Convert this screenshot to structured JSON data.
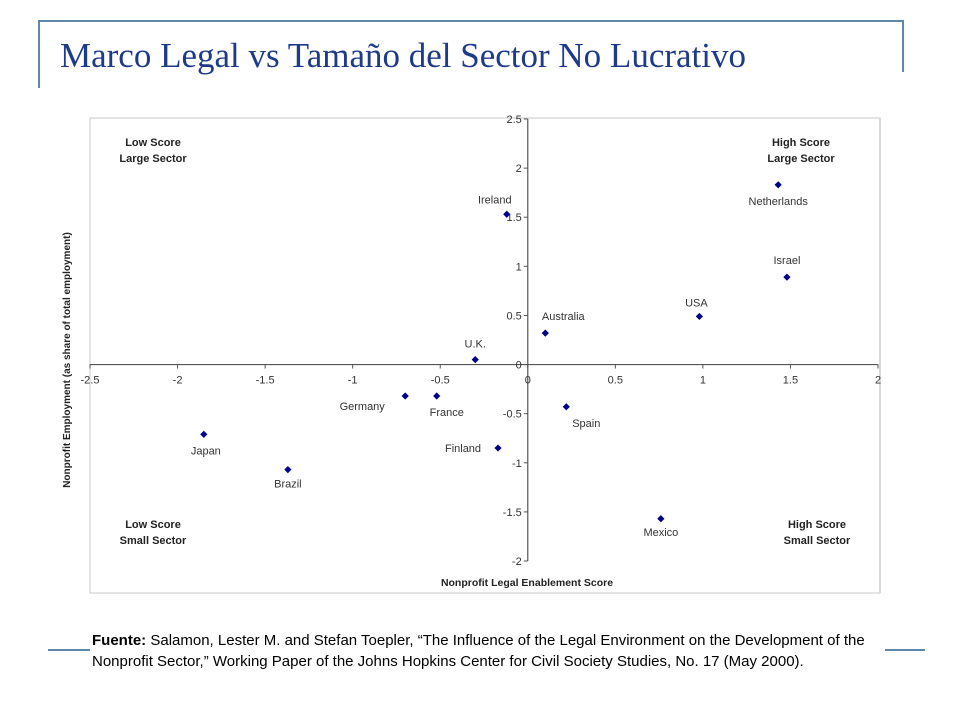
{
  "slide": {
    "title": "Marco Legal vs Tamaño del Sector No Lucrativo",
    "source_label": "Fuente:",
    "source_text": "Salamon, Lester M. and Stefan Toepler, “The Influence of the Legal Environment on the Development of the Nonprofit Sector,” Working Paper of the Johns Hopkins Center for Civil Society Studies, No. 17 (May 2000)."
  },
  "chart_data": {
    "type": "scatter",
    "xlabel": "Nonprofit Legal Enablement Score",
    "ylabel": "Nonprofit Employment (as share of total employment)",
    "xlim": [
      -2.5,
      2
    ],
    "ylim": [
      -2,
      2.5
    ],
    "x_ticks": [
      "-2.5",
      "-2",
      "-1.5",
      "-1",
      "-0.5",
      "0",
      "0.5",
      "1",
      "1.5",
      "2"
    ],
    "y_ticks": [
      "2.5",
      "2",
      "1.5",
      "1",
      "0.5",
      "0",
      "-0.5",
      "-1",
      "-1.5",
      "-2"
    ],
    "grid": false,
    "marker_color": "#00008b",
    "points": [
      {
        "label": "Ireland",
        "x": -0.12,
        "y": 1.53
      },
      {
        "label": "Netherlands",
        "x": 1.43,
        "y": 1.83
      },
      {
        "label": "Israel",
        "x": 1.48,
        "y": 0.89
      },
      {
        "label": "USA",
        "x": 0.98,
        "y": 0.49
      },
      {
        "label": "Australia",
        "x": 0.1,
        "y": 0.32
      },
      {
        "label": "U.K.",
        "x": -0.3,
        "y": 0.05
      },
      {
        "label": "Germany",
        "x": -0.7,
        "y": -0.32
      },
      {
        "label": "France",
        "x": -0.52,
        "y": -0.32
      },
      {
        "label": "Spain",
        "x": 0.22,
        "y": -0.43
      },
      {
        "label": "Japan",
        "x": -1.85,
        "y": -0.71
      },
      {
        "label": "Finland",
        "x": -0.17,
        "y": -0.85
      },
      {
        "label": "Brazil",
        "x": -1.37,
        "y": -1.07
      },
      {
        "label": "Mexico",
        "x": 0.76,
        "y": -1.57
      }
    ],
    "quadrant_labels": [
      {
        "line1": "Low Score",
        "line2": "Large Sector",
        "position": "top-left"
      },
      {
        "line1": "High Score",
        "line2": "Large Sector",
        "position": "top-right"
      },
      {
        "line1": "Low Score",
        "line2": "Small Sector",
        "position": "bottom-left"
      },
      {
        "line1": "High Score",
        "line2": "Small Sector",
        "position": "bottom-right"
      }
    ]
  }
}
